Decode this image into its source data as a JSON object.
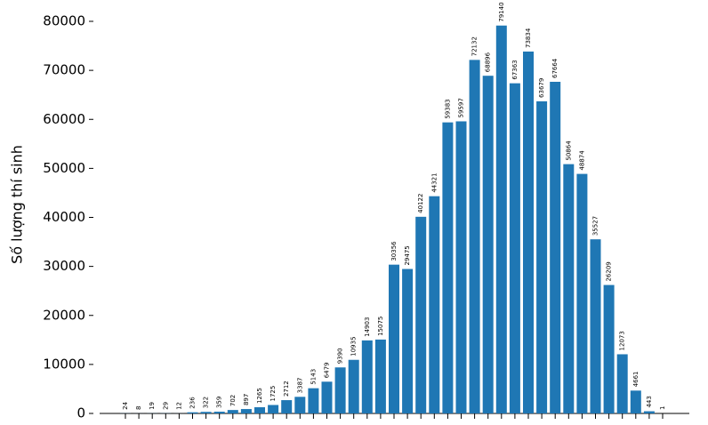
{
  "chart_data": {
    "type": "bar",
    "ylabel": "Số lượng thí sinh",
    "categories": [
      null,
      null,
      null,
      null,
      null,
      null,
      null,
      null,
      null,
      null,
      null,
      null,
      null,
      null,
      null,
      null,
      null,
      null,
      null,
      null,
      null,
      null,
      null,
      null,
      null,
      null,
      null,
      null,
      null,
      null,
      null,
      null,
      null,
      null,
      null,
      null,
      null,
      null,
      null,
      null,
      null
    ],
    "values": [
      24,
      8,
      19,
      29,
      12,
      236,
      322,
      359,
      702,
      897,
      1265,
      1725,
      2712,
      3387,
      5143,
      6479,
      9390,
      10935,
      14903,
      15075,
      30356,
      29475,
      40122,
      44321,
      59383,
      59597,
      72132,
      68896,
      79140,
      67363,
      73834,
      63679,
      67664,
      50864,
      48874,
      35527,
      26209,
      12073,
      4661,
      443,
      1
    ],
    "color": "#1f77b4",
    "ylim": [
      0,
      80000
    ],
    "yticks": [
      0,
      10000,
      20000,
      30000,
      40000,
      50000,
      60000,
      70000,
      80000
    ]
  }
}
